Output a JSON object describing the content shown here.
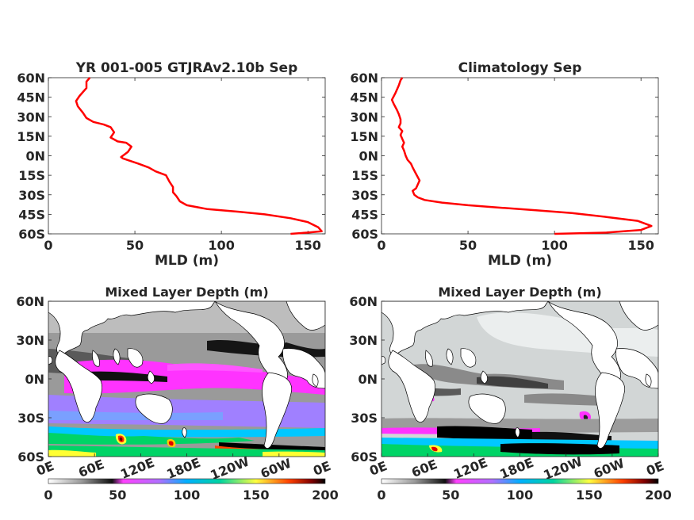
{
  "chart_data": [
    {
      "type": "line",
      "title": "YR 001-005 GTJRAv2.10b Sep",
      "xlabel": "MLD (m)",
      "ylabel": "",
      "xlim": [
        0,
        160
      ],
      "ylim": [
        -60,
        60
      ],
      "xticks": [
        0,
        50,
        100,
        150
      ],
      "yticks": [
        "60N",
        "45N",
        "30N",
        "15N",
        "0N",
        "15S",
        "30S",
        "45S",
        "60S"
      ],
      "line_color": "#ff0000",
      "series": [
        {
          "x": [
            24,
            22,
            22,
            18,
            16,
            17,
            20,
            22,
            26,
            32,
            36,
            38,
            36,
            40,
            45,
            48,
            47,
            46,
            44,
            42,
            43,
            52,
            58,
            62,
            68,
            70,
            72,
            72,
            74,
            76,
            80,
            92,
            110,
            125,
            140,
            150,
            156,
            158,
            150,
            140
          ],
          "y": [
            60,
            57,
            52,
            46,
            42,
            38,
            33,
            29,
            26,
            24,
            22,
            18,
            14,
            11,
            10,
            7,
            5,
            3,
            1,
            -1,
            -2,
            -6,
            -9,
            -12,
            -15,
            -20,
            -24,
            -28,
            -31,
            -35,
            -38,
            -41,
            -43,
            -45,
            -48,
            -51,
            -55,
            -58,
            -59,
            -60
          ]
        }
      ]
    },
    {
      "type": "line",
      "title": "Climatology Sep",
      "xlabel": "MLD (m)",
      "ylabel": "",
      "xlim": [
        0,
        160
      ],
      "ylim": [
        -60,
        60
      ],
      "xticks": [
        0,
        50,
        100,
        150
      ],
      "yticks": [
        "60N",
        "45N",
        "30N",
        "15N",
        "0N",
        "15S",
        "30S",
        "45S",
        "60S"
      ],
      "line_color": "#ff0000",
      "series": [
        {
          "x": [
            12,
            11,
            10,
            8,
            6,
            7,
            9,
            10,
            11,
            11,
            10,
            12,
            11,
            12,
            13,
            12,
            13,
            14,
            15,
            17,
            18,
            20,
            22,
            21,
            20,
            18,
            19,
            21,
            25,
            35,
            50,
            70,
            90,
            110,
            130,
            148,
            156,
            150,
            130,
            100
          ],
          "y": [
            60,
            58,
            54,
            48,
            43,
            40,
            35,
            32,
            28,
            25,
            22,
            19,
            16,
            13,
            10,
            7,
            4,
            0,
            -3,
            -6,
            -9,
            -14,
            -19,
            -22,
            -25,
            -27,
            -30,
            -32,
            -34,
            -36,
            -38,
            -40,
            -42,
            -44,
            -47,
            -50,
            -54,
            -57,
            -59,
            -60
          ]
        }
      ]
    },
    {
      "type": "heatmap",
      "title": "Mixed Layer Depth (m)",
      "xticks": [
        "0E",
        "60E",
        "120E",
        "180E",
        "120W",
        "60W",
        "0E"
      ],
      "yticks": [
        "60N",
        "30N",
        "0N",
        "30S",
        "60S"
      ],
      "colorbar_ticks": [
        0,
        50,
        100,
        150,
        200
      ],
      "colormap": [
        "#ffffff",
        "#8c8c8c",
        "#0d0d0d",
        "#ff33ff",
        "#9999ff",
        "#00e5ff",
        "#00d466",
        "#ffff33",
        "#ff5a00",
        "#8b0000",
        "#000000"
      ]
    },
    {
      "type": "heatmap",
      "title": "Mixed Layer Depth (m)",
      "xticks": [
        "0E",
        "60E",
        "120E",
        "180E",
        "120W",
        "60W",
        "0E"
      ],
      "yticks": [
        "60N",
        "30N",
        "0N",
        "30S",
        "60S"
      ],
      "colorbar_ticks": [
        0,
        50,
        100,
        150,
        200
      ],
      "colormap": [
        "#ffffff",
        "#8c8c8c",
        "#0d0d0d",
        "#ff33ff",
        "#9999ff",
        "#00e5ff",
        "#00d466",
        "#ffff33",
        "#ff5a00",
        "#8b0000",
        "#000000"
      ]
    }
  ]
}
